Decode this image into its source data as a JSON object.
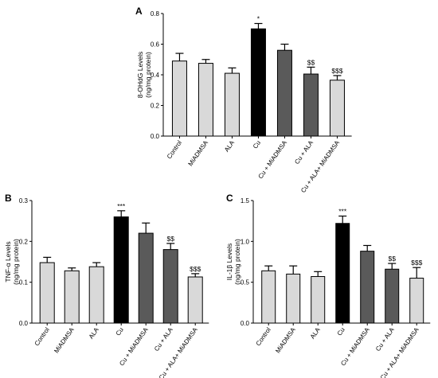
{
  "chart_data": [
    {
      "panel": "A",
      "type": "bar",
      "ylabel": "8-OHdG Levels\n(ng/mg protein)",
      "ylim": [
        0,
        0.8
      ],
      "yticks": [
        "0.0",
        "0.2",
        "0.4",
        "0.6",
        "0.8"
      ],
      "categories": [
        "Control",
        "MiADMSA",
        "ALA",
        "Cu",
        "Cu + MiADMSA",
        "Cu + ALA",
        "Cu + ALA+ MiADMSA"
      ],
      "values": [
        0.49,
        0.475,
        0.41,
        0.7,
        0.56,
        0.405,
        0.365
      ],
      "errors": [
        0.05,
        0.025,
        0.035,
        0.035,
        0.04,
        0.045,
        0.03
      ],
      "annotations": [
        "",
        "",
        "",
        "*",
        "",
        "$$",
        "$$$"
      ],
      "colors": [
        "#d9d9d9",
        "#d9d9d9",
        "#d9d9d9",
        "#000000",
        "#5a5a5a",
        "#5a5a5a",
        "#d9d9d9"
      ]
    },
    {
      "panel": "B",
      "type": "bar",
      "ylabel": "TNF-α Levels\n(ng/mg protein)",
      "ylim": [
        0,
        0.3
      ],
      "yticks": [
        "0.0",
        "0.1",
        "0.2",
        "0.3"
      ],
      "categories": [
        "Control",
        "MiADMSA",
        "ALA",
        "Cu",
        "Cu + MiADMSA",
        "Cu + ALA",
        "Cu + ALA+ MiADMSA"
      ],
      "values": [
        0.148,
        0.128,
        0.138,
        0.26,
        0.22,
        0.18,
        0.113
      ],
      "errors": [
        0.013,
        0.007,
        0.01,
        0.015,
        0.025,
        0.015,
        0.008
      ],
      "annotations": [
        "",
        "",
        "",
        "***",
        "",
        "$$",
        "$$$"
      ],
      "colors": [
        "#d9d9d9",
        "#d9d9d9",
        "#d9d9d9",
        "#000000",
        "#5a5a5a",
        "#5a5a5a",
        "#d9d9d9"
      ]
    },
    {
      "panel": "C",
      "type": "bar",
      "ylabel": "IL-1β Levels\n(ng/mg protein)",
      "ylim": [
        0,
        1.5
      ],
      "yticks": [
        "0.0",
        "0.5",
        "1.0",
        "1.5"
      ],
      "categories": [
        "Control",
        "MiADMSA",
        "ALA",
        "Cu",
        "Cu + MiADMSA",
        "Cu + ALA",
        "Cu + ALA+ MiADMSA"
      ],
      "values": [
        0.64,
        0.6,
        0.57,
        1.22,
        0.88,
        0.66,
        0.55
      ],
      "errors": [
        0.06,
        0.1,
        0.06,
        0.09,
        0.07,
        0.07,
        0.13
      ],
      "annotations": [
        "",
        "",
        "",
        "***",
        "",
        "$$",
        "$$$"
      ],
      "colors": [
        "#d9d9d9",
        "#d9d9d9",
        "#d9d9d9",
        "#000000",
        "#5a5a5a",
        "#5a5a5a",
        "#d9d9d9"
      ]
    }
  ]
}
